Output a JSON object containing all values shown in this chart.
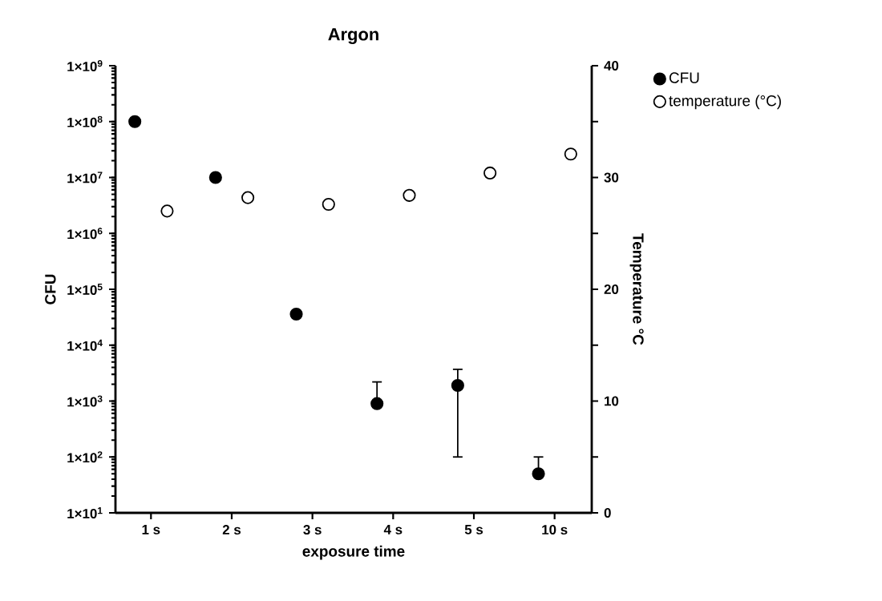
{
  "chart_data": {
    "type": "scatter",
    "title": "Argon",
    "xlabel": "exposure time",
    "ylabel": "CFU",
    "y2label": "Temperature °C",
    "categories": [
      "1 s",
      "2 s",
      "3 s",
      "4 s",
      "5 s",
      "10 s"
    ],
    "series": [
      {
        "name": "CFU",
        "color": "#000000",
        "axis": "y",
        "values": [
          100000000,
          10000000,
          36000,
          900,
          1900,
          50
        ],
        "errors": [
          null,
          null,
          null,
          [
            900,
            2200
          ],
          [
            100,
            3700
          ],
          [
            50,
            100
          ]
        ]
      },
      {
        "name": "temperature (°C)",
        "color": "#ffffff",
        "axis": "y2",
        "values": [
          27.0,
          28.2,
          27.6,
          28.4,
          30.4,
          32.1
        ]
      }
    ],
    "log": "y",
    "grid": false,
    "legend": "top right",
    "ylim": [
      10,
      1000000000
    ],
    "yticks": [
      {
        "value": 10,
        "label": "1×10$^{1}$"
      },
      {
        "value": 100,
        "label": "1×10$^{2}$"
      },
      {
        "value": 1000,
        "label": "1×10$^{3}$"
      },
      {
        "value": 10000,
        "label": "1×10$^{4}$"
      },
      {
        "value": 100000,
        "label": "1×10$^{5}$"
      },
      {
        "value": 1000000,
        "label": "1×10$^{6}$"
      },
      {
        "value": 10000000,
        "label": "1×10$^{7}$"
      },
      {
        "value": 100000000,
        "label": "1×10$^{8}$"
      },
      {
        "value": 1000000000,
        "label": "1×10$^{9}$"
      }
    ],
    "y2lim": [
      0,
      40
    ],
    "y2ticks": [
      0,
      10,
      20,
      30,
      40
    ]
  }
}
